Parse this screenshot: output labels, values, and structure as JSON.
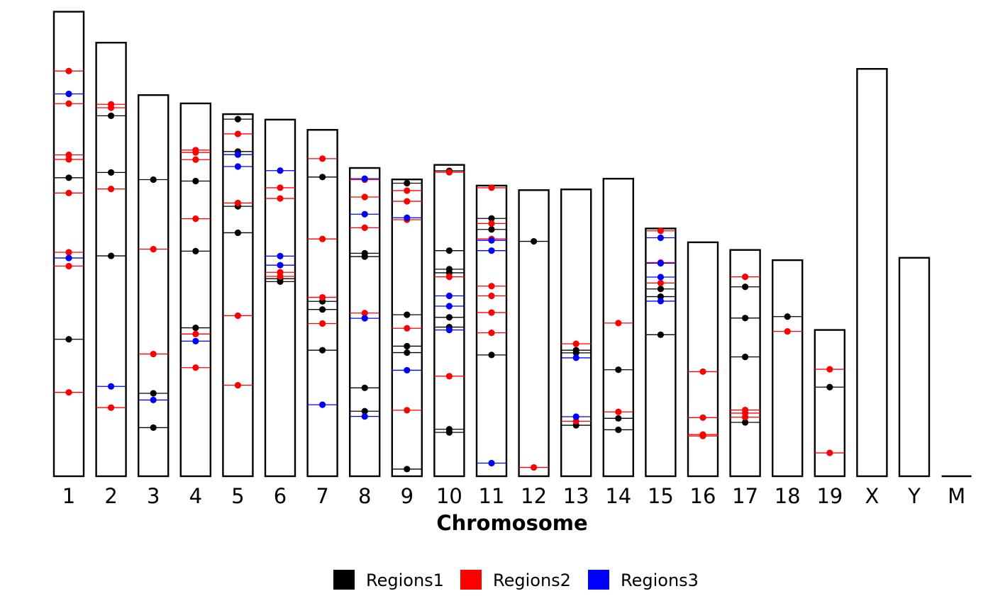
{
  "chart_data": {
    "type": "ideogram",
    "xlabel": "Chromosome",
    "chromosomes": [
      {
        "name": "1",
        "length": 195
      },
      {
        "name": "2",
        "length": 182
      },
      {
        "name": "3",
        "length": 160
      },
      {
        "name": "4",
        "length": 156.5
      },
      {
        "name": "5",
        "length": 152
      },
      {
        "name": "6",
        "length": 149.7
      },
      {
        "name": "7",
        "length": 145.4
      },
      {
        "name": "8",
        "length": 129.4
      },
      {
        "name": "9",
        "length": 124.6
      },
      {
        "name": "10",
        "length": 130.7
      },
      {
        "name": "11",
        "length": 122
      },
      {
        "name": "12",
        "length": 120.1
      },
      {
        "name": "13",
        "length": 120.4
      },
      {
        "name": "14",
        "length": 124.9
      },
      {
        "name": "15",
        "length": 104
      },
      {
        "name": "16",
        "length": 98.2
      },
      {
        "name": "17",
        "length": 94.99
      },
      {
        "name": "18",
        "length": 90.7
      },
      {
        "name": "19",
        "length": 61.4
      },
      {
        "name": "X",
        "length": 171
      },
      {
        "name": "Y",
        "length": 91.7
      },
      {
        "name": "M",
        "length": 0.016
      }
    ],
    "series": [
      {
        "name": "Regions1",
        "color": "#000000",
        "points": [
          {
            "chr": "1",
            "pos": 125.3
          },
          {
            "chr": "1",
            "pos": 57.5
          },
          {
            "chr": "2",
            "pos": 151.3
          },
          {
            "chr": "2",
            "pos": 127.5
          },
          {
            "chr": "2",
            "pos": 92.5
          },
          {
            "chr": "3",
            "pos": 124.5
          },
          {
            "chr": "3",
            "pos": 34.8
          },
          {
            "chr": "3",
            "pos": 20.4
          },
          {
            "chr": "4",
            "pos": 123.9
          },
          {
            "chr": "4",
            "pos": 94.5
          },
          {
            "chr": "4",
            "pos": 62.3
          },
          {
            "chr": "5",
            "pos": 149.9
          },
          {
            "chr": "5",
            "pos": 136.3
          },
          {
            "chr": "5",
            "pos": 113.3
          },
          {
            "chr": "5",
            "pos": 102.2
          },
          {
            "chr": "6",
            "pos": 82.9
          },
          {
            "chr": "6",
            "pos": 81.7
          },
          {
            "chr": "7",
            "pos": 125.6
          },
          {
            "chr": "7",
            "pos": 73.4
          },
          {
            "chr": "7",
            "pos": 70.0
          },
          {
            "chr": "7",
            "pos": 52.9
          },
          {
            "chr": "8",
            "pos": 93.6
          },
          {
            "chr": "8",
            "pos": 92.2
          },
          {
            "chr": "8",
            "pos": 37.1
          },
          {
            "chr": "8",
            "pos": 27.3
          },
          {
            "chr": "9",
            "pos": 123.0
          },
          {
            "chr": "9",
            "pos": 67.8
          },
          {
            "chr": "9",
            "pos": 54.6
          },
          {
            "chr": "9",
            "pos": 51.9
          },
          {
            "chr": "9",
            "pos": 3.0
          },
          {
            "chr": "10",
            "pos": 128.2
          },
          {
            "chr": "10",
            "pos": 94.7
          },
          {
            "chr": "10",
            "pos": 86.9
          },
          {
            "chr": "10",
            "pos": 85.4
          },
          {
            "chr": "10",
            "pos": 66.7
          },
          {
            "chr": "10",
            "pos": 62.6
          },
          {
            "chr": "10",
            "pos": 19.7
          },
          {
            "chr": "10",
            "pos": 18.4
          },
          {
            "chr": "11",
            "pos": 108.2
          },
          {
            "chr": "11",
            "pos": 103.6
          },
          {
            "chr": "11",
            "pos": 50.9
          },
          {
            "chr": "12",
            "pos": 98.6
          },
          {
            "chr": "13",
            "pos": 52.9
          },
          {
            "chr": "13",
            "pos": 51.8
          },
          {
            "chr": "13",
            "pos": 21.4
          },
          {
            "chr": "14",
            "pos": 44.7
          },
          {
            "chr": "14",
            "pos": 24.3
          },
          {
            "chr": "14",
            "pos": 19.5
          },
          {
            "chr": "15",
            "pos": 78.6
          },
          {
            "chr": "15",
            "pos": 75.4
          },
          {
            "chr": "15",
            "pos": 59.4
          },
          {
            "chr": "17",
            "pos": 79.5
          },
          {
            "chr": "17",
            "pos": 66.4
          },
          {
            "chr": "17",
            "pos": 50.1
          },
          {
            "chr": "17",
            "pos": 22.6
          },
          {
            "chr": "18",
            "pos": 67.0
          },
          {
            "chr": "19",
            "pos": 37.4
          }
        ]
      },
      {
        "name": "Regions2",
        "color": "#ff0000",
        "points": [
          {
            "chr": "1",
            "pos": 170.1
          },
          {
            "chr": "1",
            "pos": 156.4
          },
          {
            "chr": "1",
            "pos": 134.9
          },
          {
            "chr": "1",
            "pos": 133.0
          },
          {
            "chr": "1",
            "pos": 118.9
          },
          {
            "chr": "1",
            "pos": 94.0
          },
          {
            "chr": "1",
            "pos": 88.2
          },
          {
            "chr": "1",
            "pos": 35.2
          },
          {
            "chr": "2",
            "pos": 156.1
          },
          {
            "chr": "2",
            "pos": 154.7
          },
          {
            "chr": "2",
            "pos": 120.6
          },
          {
            "chr": "2",
            "pos": 28.8
          },
          {
            "chr": "3",
            "pos": 95.3
          },
          {
            "chr": "3",
            "pos": 51.3
          },
          {
            "chr": "4",
            "pos": 136.9
          },
          {
            "chr": "4",
            "pos": 135.9
          },
          {
            "chr": "4",
            "pos": 132.9
          },
          {
            "chr": "4",
            "pos": 108.1
          },
          {
            "chr": "4",
            "pos": 59.7
          },
          {
            "chr": "4",
            "pos": 45.6
          },
          {
            "chr": "5",
            "pos": 143.7
          },
          {
            "chr": "5",
            "pos": 114.7
          },
          {
            "chr": "5",
            "pos": 67.4
          },
          {
            "chr": "5",
            "pos": 38.2
          },
          {
            "chr": "6",
            "pos": 121.1
          },
          {
            "chr": "6",
            "pos": 116.6
          },
          {
            "chr": "6",
            "pos": 85.6
          },
          {
            "chr": "6",
            "pos": 83.9
          },
          {
            "chr": "7",
            "pos": 133.3
          },
          {
            "chr": "7",
            "pos": 99.6
          },
          {
            "chr": "7",
            "pos": 75.1
          },
          {
            "chr": "7",
            "pos": 64.1
          },
          {
            "chr": "8",
            "pos": 124.5
          },
          {
            "chr": "8",
            "pos": 117.2
          },
          {
            "chr": "8",
            "pos": 104.3
          },
          {
            "chr": "8",
            "pos": 68.5
          },
          {
            "chr": "9",
            "pos": 119.9
          },
          {
            "chr": "9",
            "pos": 115.4
          },
          {
            "chr": "9",
            "pos": 107.7
          },
          {
            "chr": "9",
            "pos": 62.1
          },
          {
            "chr": "9",
            "pos": 27.7
          },
          {
            "chr": "10",
            "pos": 127.6
          },
          {
            "chr": "10",
            "pos": 83.7
          },
          {
            "chr": "10",
            "pos": 42.0
          },
          {
            "chr": "11",
            "pos": 121.1
          },
          {
            "chr": "11",
            "pos": 106.1
          },
          {
            "chr": "11",
            "pos": 99.6
          },
          {
            "chr": "11",
            "pos": 79.8
          },
          {
            "chr": "11",
            "pos": 75.7
          },
          {
            "chr": "11",
            "pos": 68.7
          },
          {
            "chr": "11",
            "pos": 60.2
          },
          {
            "chr": "12",
            "pos": 3.7
          },
          {
            "chr": "13",
            "pos": 55.6
          },
          {
            "chr": "13",
            "pos": 23.1
          },
          {
            "chr": "14",
            "pos": 64.3
          },
          {
            "chr": "14",
            "pos": 27.0
          },
          {
            "chr": "15",
            "pos": 103.0
          },
          {
            "chr": "15",
            "pos": 89.7
          },
          {
            "chr": "15",
            "pos": 81.1
          },
          {
            "chr": "16",
            "pos": 43.9
          },
          {
            "chr": "16",
            "pos": 24.6
          },
          {
            "chr": "16",
            "pos": 17.5
          },
          {
            "chr": "16",
            "pos": 16.9
          },
          {
            "chr": "17",
            "pos": 83.7
          },
          {
            "chr": "17",
            "pos": 27.8
          },
          {
            "chr": "17",
            "pos": 26.5
          },
          {
            "chr": "17",
            "pos": 24.8
          },
          {
            "chr": "18",
            "pos": 60.8
          },
          {
            "chr": "19",
            "pos": 44.9
          },
          {
            "chr": "19",
            "pos": 9.8
          }
        ]
      },
      {
        "name": "Regions3",
        "color": "#0000ff",
        "points": [
          {
            "chr": "1",
            "pos": 160.5
          },
          {
            "chr": "1",
            "pos": 91.6
          },
          {
            "chr": "2",
            "pos": 37.7
          },
          {
            "chr": "3",
            "pos": 32.0
          },
          {
            "chr": "4",
            "pos": 56.7
          },
          {
            "chr": "5",
            "pos": 135.0
          },
          {
            "chr": "5",
            "pos": 130.0
          },
          {
            "chr": "6",
            "pos": 128.3
          },
          {
            "chr": "6",
            "pos": 92.4
          },
          {
            "chr": "6",
            "pos": 88.6
          },
          {
            "chr": "7",
            "pos": 30.0
          },
          {
            "chr": "8",
            "pos": 124.9
          },
          {
            "chr": "8",
            "pos": 110.0
          },
          {
            "chr": "8",
            "pos": 66.3
          },
          {
            "chr": "8",
            "pos": 25.1
          },
          {
            "chr": "9",
            "pos": 108.5
          },
          {
            "chr": "9",
            "pos": 44.5
          },
          {
            "chr": "10",
            "pos": 75.7
          },
          {
            "chr": "10",
            "pos": 71.4
          },
          {
            "chr": "10",
            "pos": 61.4
          },
          {
            "chr": "11",
            "pos": 99.0
          },
          {
            "chr": "11",
            "pos": 94.7
          },
          {
            "chr": "11",
            "pos": 5.5
          },
          {
            "chr": "13",
            "pos": 49.7
          },
          {
            "chr": "13",
            "pos": 25.0
          },
          {
            "chr": "15",
            "pos": 100.1
          },
          {
            "chr": "15",
            "pos": 89.4
          },
          {
            "chr": "15",
            "pos": 83.6
          },
          {
            "chr": "15",
            "pos": 73.5
          }
        ]
      }
    ],
    "legend": {
      "position": "bottom",
      "entries": [
        {
          "name": "Regions1",
          "color": "#000000"
        },
        {
          "name": "Regions2",
          "color": "#ff0000"
        },
        {
          "name": "Regions3",
          "color": "#0000ff"
        }
      ]
    }
  }
}
